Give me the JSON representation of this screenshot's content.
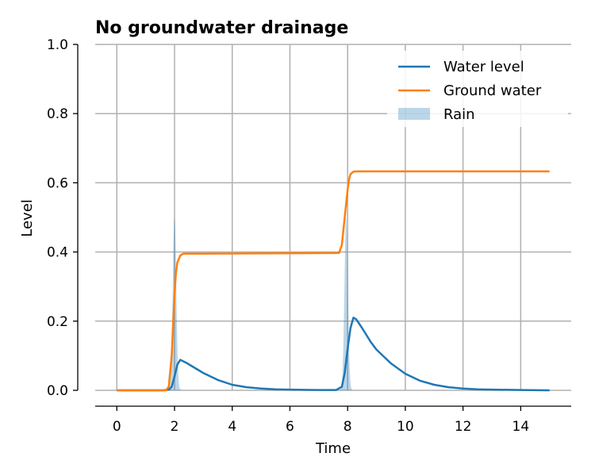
{
  "chart_data": {
    "type": "line",
    "title": "No groundwater drainage",
    "xlabel": "Time",
    "ylabel": "Level",
    "xlim": [
      -0.75,
      15.75
    ],
    "ylim": [
      0.0,
      1.0
    ],
    "xticks": [
      0,
      2,
      4,
      6,
      8,
      10,
      12,
      14
    ],
    "xtick_labels": [
      "0",
      "2",
      "4",
      "6",
      "8",
      "10",
      "12",
      "14"
    ],
    "yticks": [
      0.0,
      0.2,
      0.4,
      0.6,
      0.8,
      1.0
    ],
    "ytick_labels": [
      "0.0",
      "0.2",
      "0.4",
      "0.6",
      "0.8",
      "1.0"
    ],
    "grid": true,
    "legend_position": "top-right",
    "series": [
      {
        "name": "Water level",
        "color": "#1f77b4",
        "kind": "line",
        "x": [
          0,
          1.6,
          1.8,
          1.9,
          2.0,
          2.1,
          2.2,
          2.4,
          2.6,
          3.0,
          3.5,
          4.0,
          4.5,
          5.0,
          5.5,
          6.0,
          7.0,
          7.6,
          7.8,
          7.9,
          8.0,
          8.1,
          8.2,
          8.3,
          8.5,
          8.8,
          9.0,
          9.5,
          10.0,
          10.5,
          11.0,
          11.5,
          12.0,
          12.5,
          13.0,
          14.0,
          15.0
        ],
        "y": [
          0,
          0,
          0.002,
          0.01,
          0.04,
          0.075,
          0.088,
          0.08,
          0.07,
          0.05,
          0.03,
          0.016,
          0.009,
          0.005,
          0.003,
          0.002,
          0.001,
          0.001,
          0.01,
          0.05,
          0.12,
          0.18,
          0.21,
          0.205,
          0.18,
          0.14,
          0.118,
          0.078,
          0.048,
          0.028,
          0.016,
          0.009,
          0.005,
          0.003,
          0.002,
          0.001,
          0.0
        ]
      },
      {
        "name": "Ground water",
        "color": "#ff7f0e",
        "kind": "line",
        "x": [
          0,
          1.7,
          1.8,
          1.9,
          2.0,
          2.05,
          2.1,
          2.2,
          2.3,
          2.5,
          7.7,
          7.8,
          7.9,
          8.0,
          8.05,
          8.1,
          8.2,
          8.3,
          8.5,
          15.0
        ],
        "y": [
          0,
          0,
          0.01,
          0.1,
          0.28,
          0.34,
          0.37,
          0.39,
          0.395,
          0.395,
          0.397,
          0.42,
          0.5,
          0.58,
          0.61,
          0.625,
          0.632,
          0.633,
          0.633,
          0.633
        ]
      },
      {
        "name": "Rain",
        "color": "#1f77b4",
        "kind": "area",
        "opacity": 0.3,
        "peaks": [
          {
            "center": 2.0,
            "height": 0.5,
            "width": 0.06
          },
          {
            "center": 7.95,
            "height": 0.5,
            "width": 0.06
          }
        ]
      }
    ]
  }
}
